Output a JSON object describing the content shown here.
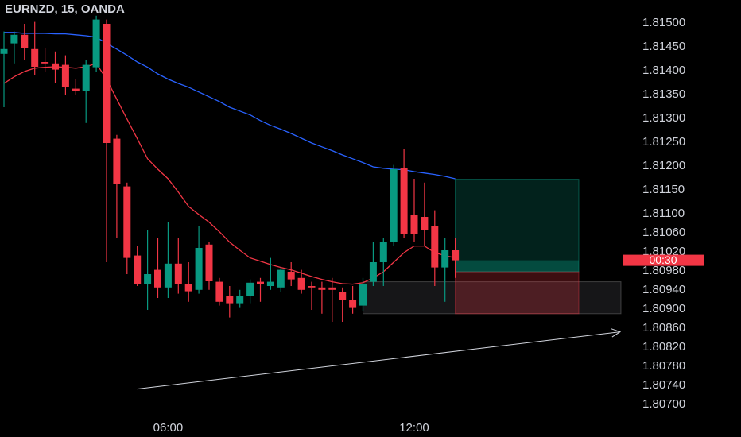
{
  "chart_data": {
    "type": "candlestick",
    "title": "EURNZD, 15, OANDA",
    "categories": [
      null,
      null,
      null,
      null,
      null,
      null,
      null,
      null,
      null,
      null,
      null,
      null,
      null,
      null,
      null,
      null,
      "06:00",
      null,
      null,
      null,
      null,
      null,
      null,
      null,
      null,
      null,
      null,
      null,
      null,
      null,
      null,
      null,
      null,
      null,
      null,
      null,
      null,
      null,
      null,
      null,
      "12:00",
      null,
      null,
      null,
      null
    ],
    "open": [
      1.81435,
      1.81457,
      1.81475,
      1.81445,
      1.81418,
      1.81415,
      1.81412,
      1.81362,
      1.81357,
      1.81407,
      1.81498,
      1.81257,
      1.81157,
      1.81012,
      1.80952,
      1.80982,
      1.80945,
      1.80995,
      1.80953,
      1.8094,
      1.81035,
      1.80957,
      1.80928,
      1.80912,
      1.80928,
      1.80957,
      1.80948,
      1.80945,
      1.80978,
      1.80965,
      1.80948,
      1.80945,
      1.80945,
      1.80935,
      1.80918,
      1.80907,
      1.80957,
      1.80998,
      1.8104,
      1.81195,
      1.81098,
      1.81093,
      1.81073,
      1.80987,
      1.81023
    ],
    "high": [
      1.81482,
      1.81482,
      1.81498,
      1.81502,
      1.81448,
      1.8144,
      1.81432,
      1.81382,
      1.81423,
      1.81515,
      1.81507,
      1.81265,
      1.81165,
      1.81032,
      1.81065,
      1.81048,
      1.81082,
      1.81048,
      1.80998,
      1.81073,
      1.8104,
      1.80965,
      1.80948,
      1.8094,
      1.80962,
      1.80965,
      1.81007,
      1.80987,
      1.80998,
      1.80982,
      1.80957,
      1.80957,
      1.80965,
      1.80945,
      1.80948,
      1.80965,
      1.8104,
      1.81048,
      1.81202,
      1.81235,
      1.81173,
      1.81165,
      1.81107,
      1.81048,
      1.81048
    ],
    "low": [
      1.81323,
      1.81415,
      1.81423,
      1.8139,
      1.81398,
      1.81373,
      1.81348,
      1.81348,
      1.8129,
      1.81398,
      1.80998,
      1.81048,
      1.80973,
      1.80948,
      1.80898,
      1.80923,
      1.80923,
      1.80932,
      1.80915,
      1.80932,
      1.8094,
      1.80907,
      1.80882,
      1.80902,
      1.80912,
      1.80915,
      1.8094,
      1.80935,
      1.80948,
      1.80932,
      1.80898,
      1.8089,
      1.80873,
      1.80873,
      1.8089,
      1.80895,
      1.80948,
      1.80948,
      1.81032,
      1.81048,
      1.8104,
      1.81032,
      1.80948,
      1.80915,
      1.80965
    ],
    "close": [
      1.81445,
      1.81475,
      1.81448,
      1.81408,
      1.81415,
      1.81402,
      1.81365,
      1.81357,
      1.81412,
      1.81507,
      1.81248,
      1.81162,
      1.81007,
      1.80952,
      1.80973,
      1.80945,
      1.80995,
      1.80953,
      1.80937,
      1.81028,
      1.80958,
      1.80915,
      1.80912,
      1.80928,
      1.80955,
      1.80952,
      1.80957,
      1.80982,
      1.80962,
      1.8094,
      1.80945,
      1.8094,
      1.8094,
      1.80918,
      1.80902,
      1.80953,
      1.80998,
      1.8104,
      1.81193,
      1.81057,
      1.81058,
      1.81065,
      1.80987,
      1.81023,
      1.81002
    ],
    "up_color": "#089981",
    "down_color": "#f23645",
    "lines": [
      {
        "color": "#2962ff",
        "values": [
          1.8148,
          1.8148,
          1.81478,
          1.81478,
          1.81478,
          1.81477,
          1.81477,
          1.81475,
          1.81473,
          1.8147,
          1.81457,
          1.81445,
          1.81432,
          1.81418,
          1.81407,
          1.81393,
          1.81382,
          1.81373,
          1.81365,
          1.81355,
          1.81345,
          1.81335,
          1.81323,
          1.81315,
          1.81307,
          1.81295,
          1.81285,
          1.81277,
          1.81268,
          1.81258,
          1.81248,
          1.8124,
          1.81232,
          1.81223,
          1.81215,
          1.81207,
          1.81198,
          1.81195,
          1.81193,
          1.81192,
          1.81188,
          1.81185,
          1.81182,
          1.81178,
          1.81173
        ]
      },
      {
        "color": "#f23645",
        "values": [
          1.81373,
          1.81387,
          1.81398,
          1.81405,
          1.81407,
          1.81408,
          1.81407,
          1.81405,
          1.81408,
          1.81415,
          1.81382,
          1.8134,
          1.81298,
          1.81257,
          1.81215,
          1.81193,
          1.81173,
          1.81145,
          1.81115,
          1.81098,
          1.81082,
          1.81062,
          1.8104,
          1.81023,
          1.81007,
          1.81,
          1.80993,
          1.80987,
          1.80982,
          1.80975,
          1.80968,
          1.80962,
          1.80957,
          1.80953,
          1.80952,
          1.80955,
          1.80965,
          1.80978,
          1.80998,
          1.81018,
          1.81032,
          1.81032,
          1.81018,
          1.81012,
          1.81007
        ]
      }
    ],
    "position": {
      "target": 1.81172,
      "entry": 1.80978,
      "stop": 1.8089
    },
    "zone": [
      1.80957,
      1.8089
    ],
    "trendline": [
      1.80732,
      1.80852
    ],
    "countdown": "00:30",
    "ylim": [
      1.80673,
      1.81548
    ],
    "yticks": [
      {
        "value": 1.815,
        "label": "1.81500"
      },
      {
        "value": 1.8145,
        "label": "1.81450"
      },
      {
        "value": 1.814,
        "label": "1.81400"
      },
      {
        "value": 1.8135,
        "label": "1.81350"
      },
      {
        "value": 1.813,
        "label": "1.81300"
      },
      {
        "value": 1.8125,
        "label": "1.81250"
      },
      {
        "value": 1.812,
        "label": "1.81200"
      },
      {
        "value": 1.8115,
        "label": "1.81150"
      },
      {
        "value": 1.811,
        "label": "1.81100"
      },
      {
        "value": 1.8106,
        "label": "1.81060"
      },
      {
        "value": 1.8102,
        "label": "1.81020"
      },
      {
        "value": 1.8098,
        "label": "1.80980"
      },
      {
        "value": 1.8094,
        "label": "1.80940"
      },
      {
        "value": 1.809,
        "label": "1.80900"
      },
      {
        "value": 1.8086,
        "label": "1.80860"
      },
      {
        "value": 1.8082,
        "label": "1.80820"
      },
      {
        "value": 1.8078,
        "label": "1.80780"
      },
      {
        "value": 1.8074,
        "label": "1.80740"
      },
      {
        "value": 1.807,
        "label": "1.80700"
      }
    ]
  }
}
